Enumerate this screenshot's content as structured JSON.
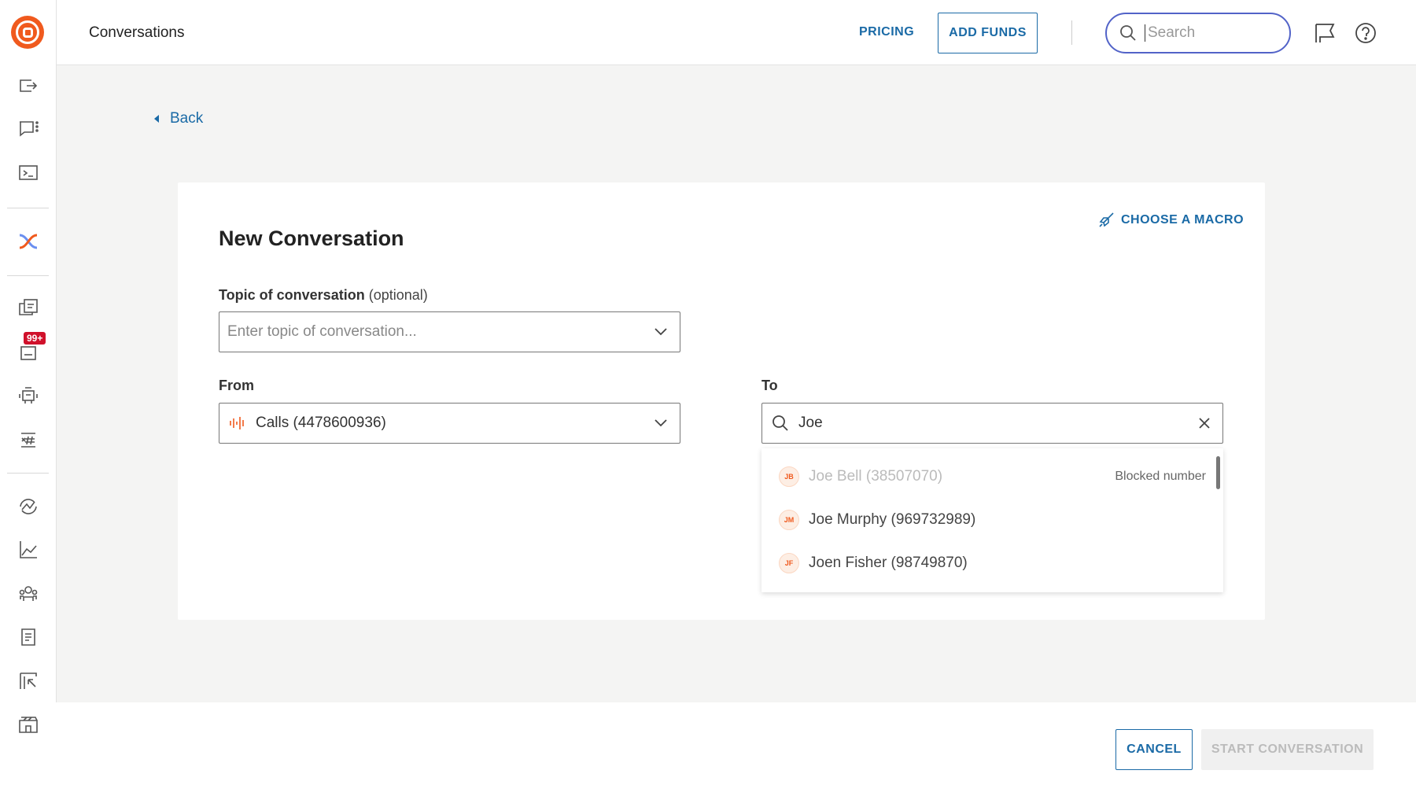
{
  "sidebar": {
    "badge": "99+",
    "colors": {
      "logo": "#f05a1e",
      "badge": "#d0112b"
    }
  },
  "header": {
    "title": "Conversations",
    "pricing": "PRICING",
    "add_funds": "ADD FUNDS",
    "search_placeholder": "Search"
  },
  "back": "Back",
  "card": {
    "title": "New Conversation",
    "macro": "CHOOSE A MACRO",
    "topic_label": "Topic of conversation",
    "topic_optional": "(optional)",
    "topic_placeholder": "Enter topic of conversation...",
    "from_label": "From",
    "from_value": "Calls (4478600936)",
    "to_label": "To",
    "to_value": "Joe"
  },
  "contacts": [
    {
      "initials": "JB",
      "name": "Joe Bell (38507070)",
      "note": "Blocked number",
      "blocked": true
    },
    {
      "initials": "JM",
      "name": "Joe Murphy (969732989)",
      "note": ""
    },
    {
      "initials": "JF",
      "name": "Joen Fisher (98749870)",
      "note": ""
    }
  ],
  "footer": {
    "cancel": "CANCEL",
    "start": "START CONVERSATION"
  }
}
